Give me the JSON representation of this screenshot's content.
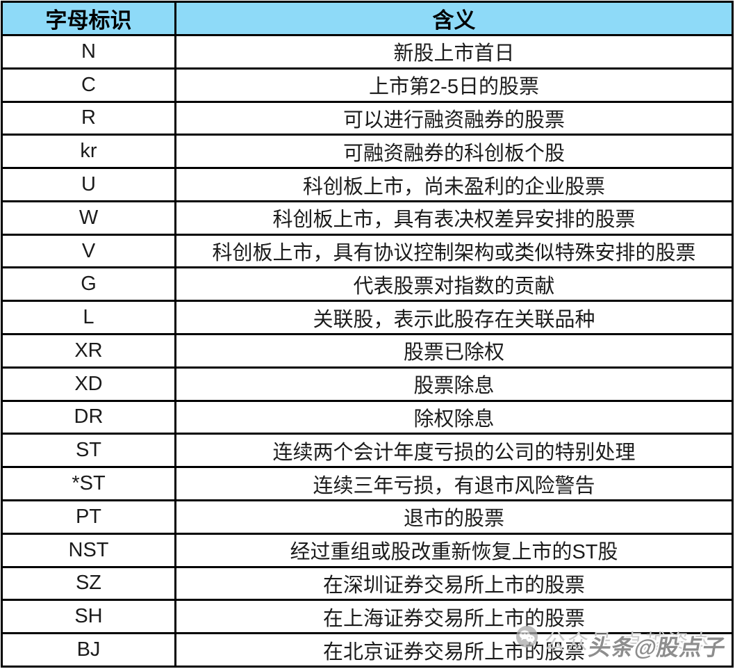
{
  "table": {
    "headers": [
      "字母标识",
      "含义"
    ],
    "rows": [
      [
        "N",
        "新股上市首日"
      ],
      [
        "C",
        "上市第2-5日的股票"
      ],
      [
        "R",
        "可以进行融资融券的股票"
      ],
      [
        "kr",
        "可融资融券的科创板个股"
      ],
      [
        "U",
        "科创板上市，尚未盈利的企业股票"
      ],
      [
        "W",
        "科创板上市，具有表决权差异安排的股票"
      ],
      [
        "V",
        "科创板上市，具有协议控制架构或类似特殊安排的股票"
      ],
      [
        "G",
        "代表股票对指数的贡献"
      ],
      [
        "L",
        "关联股，表示此股存在关联品种"
      ],
      [
        "XR",
        "股票已除权"
      ],
      [
        "XD",
        "股票除息"
      ],
      [
        "DR",
        "除权除息"
      ],
      [
        "ST",
        "连续两个会计年度亏损的公司的特别处理"
      ],
      [
        "*ST",
        "连续三年亏损，有退市风险警告"
      ],
      [
        "PT",
        "退市的股票"
      ],
      [
        "NST",
        "经过重组或股改重新恢复上市的ST股"
      ],
      [
        "SZ",
        "在深圳证券交易所上市的股票"
      ],
      [
        "SH",
        "在上海证券交易所上市的股票"
      ],
      [
        "BJ",
        "在北京证券交易所上市的股票"
      ]
    ]
  },
  "watermark": {
    "icon": "wechat-icon",
    "light_label": "公众号 卓越资本",
    "dark_label": "头条@股点子"
  },
  "colors": {
    "header_bg": "#8EDAF8",
    "border_color": "#000000",
    "cell_text": "#1b1b1b",
    "watermark_light": "#c9c9c9",
    "watermark_dark": "#8d8d8d"
  }
}
